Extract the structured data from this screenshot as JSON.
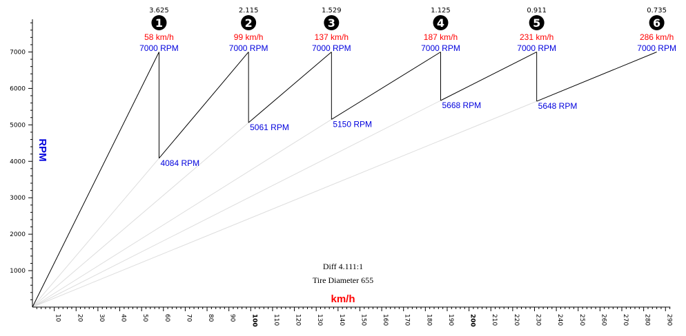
{
  "colors": {
    "accent_red": "#ff0000",
    "accent_blue": "#0000dd",
    "gear_line": "#000000",
    "guide_line": "#dddddd"
  },
  "chart_data": {
    "type": "line",
    "title": "",
    "xlabel": "km/h",
    "ylabel": "RPM",
    "xlim": [
      0,
      290
    ],
    "ylim": [
      0,
      7000
    ],
    "x_ticks": [
      10,
      20,
      30,
      40,
      50,
      60,
      70,
      80,
      90,
      100,
      110,
      120,
      130,
      140,
      150,
      160,
      170,
      180,
      190,
      200,
      210,
      220,
      230,
      240,
      250,
      260,
      270,
      280,
      290
    ],
    "x_ticks_bold": [
      100,
      200
    ],
    "y_ticks": [
      1000,
      2000,
      3000,
      4000,
      5000,
      6000,
      7000
    ],
    "redline_rpm": 7000,
    "gears": [
      {
        "gear": 1,
        "ratio": "3.625",
        "top_speed": 58,
        "top_speed_label": "58 km/h",
        "top_rpm_label": "7000 RPM",
        "start_speed": 0,
        "start_rpm": 0,
        "start_rpm_label": ""
      },
      {
        "gear": 2,
        "ratio": "2.115",
        "top_speed": 99,
        "top_speed_label": "99 km/h",
        "top_rpm_label": "7000 RPM",
        "start_speed": 58,
        "start_rpm": 4084,
        "start_rpm_label": "4084 RPM"
      },
      {
        "gear": 3,
        "ratio": "1.529",
        "top_speed": 137,
        "top_speed_label": "137 km/h",
        "top_rpm_label": "7000 RPM",
        "start_speed": 99,
        "start_rpm": 5061,
        "start_rpm_label": "5061 RPM"
      },
      {
        "gear": 4,
        "ratio": "1.125",
        "top_speed": 187,
        "top_speed_label": "187 km/h",
        "top_rpm_label": "7000 RPM",
        "start_speed": 137,
        "start_rpm": 5150,
        "start_rpm_label": "5150 RPM"
      },
      {
        "gear": 5,
        "ratio": "0.911",
        "top_speed": 231,
        "top_speed_label": "231 km/h",
        "top_rpm_label": "7000 RPM",
        "start_speed": 187,
        "start_rpm": 5668,
        "start_rpm_label": "5668 RPM"
      },
      {
        "gear": 6,
        "ratio": "0.735",
        "top_speed": 286,
        "top_speed_label": "286 km/h",
        "top_rpm_label": "7000 RPM",
        "start_speed": 231,
        "start_rpm": 5648,
        "start_rpm_label": "5648 RPM"
      }
    ],
    "annotations": {
      "diff": "Diff 4.111:1",
      "tire": "Tire Diameter 655"
    }
  }
}
